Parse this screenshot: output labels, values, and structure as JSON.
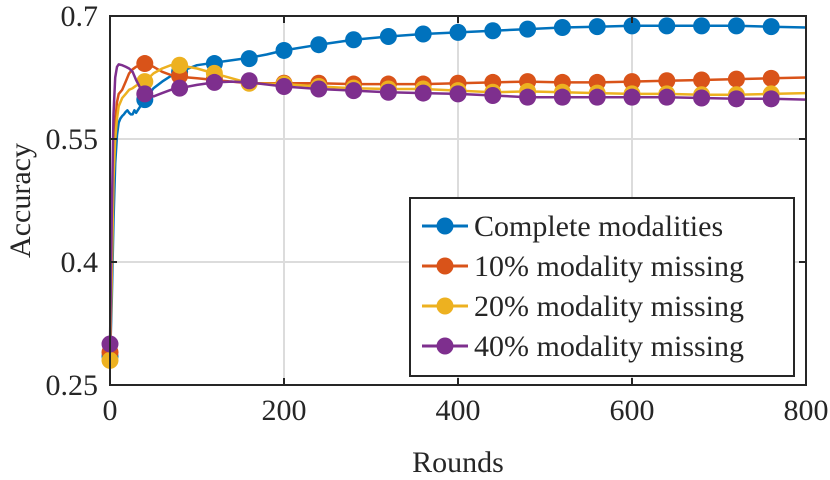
{
  "chart_data": {
    "type": "line",
    "title": "",
    "xlabel": "Rounds",
    "ylabel": "Accuracy",
    "xlim": [
      0,
      800
    ],
    "ylim": [
      0.25,
      0.7
    ],
    "xticks": [
      0,
      200,
      400,
      600,
      800
    ],
    "xtick_labels": [
      "0",
      "200",
      "400",
      "600",
      "800"
    ],
    "yticks": [
      0.25,
      0.4,
      0.55,
      0.7
    ],
    "ytick_labels": [
      "0.25",
      "0.4",
      "0.55",
      "0.7"
    ],
    "grid": true,
    "legend_position": "bottom-right",
    "series": [
      {
        "name": "Complete modalities",
        "color": "#0072BD",
        "line_x": [
          0,
          2,
          4,
          6,
          8,
          10,
          12,
          14,
          16,
          18,
          20,
          22,
          24,
          26,
          28,
          30,
          35,
          40,
          45,
          50,
          60,
          70,
          80,
          90,
          100,
          120,
          140,
          160,
          180,
          200,
          240,
          280,
          320,
          360,
          400,
          440,
          480,
          520,
          560,
          600,
          640,
          680,
          720,
          760,
          800
        ],
        "line_y": [
          0.28,
          0.35,
          0.45,
          0.52,
          0.555,
          0.57,
          0.575,
          0.578,
          0.58,
          0.583,
          0.585,
          0.582,
          0.58,
          0.58,
          0.585,
          0.582,
          0.59,
          0.598,
          0.605,
          0.612,
          0.62,
          0.627,
          0.632,
          0.636,
          0.64,
          0.643,
          0.646,
          0.649,
          0.653,
          0.658,
          0.665,
          0.671,
          0.675,
          0.678,
          0.68,
          0.682,
          0.684,
          0.686,
          0.687,
          0.688,
          0.688,
          0.688,
          0.688,
          0.687,
          0.686
        ],
        "marker_x": [
          0,
          40,
          80,
          120,
          160,
          200,
          240,
          280,
          320,
          360,
          400,
          440,
          480,
          520,
          560,
          600,
          640,
          680,
          720,
          760
        ],
        "marker_y": [
          0.285,
          0.598,
          0.632,
          0.642,
          0.648,
          0.658,
          0.665,
          0.671,
          0.675,
          0.678,
          0.68,
          0.682,
          0.684,
          0.686,
          0.687,
          0.688,
          0.688,
          0.688,
          0.688,
          0.687
        ]
      },
      {
        "name": "10% modality missing",
        "color": "#D95319",
        "line_x": [
          0,
          2,
          4,
          6,
          8,
          10,
          14,
          18,
          22,
          26,
          30,
          35,
          40,
          50,
          60,
          70,
          80,
          100,
          120,
          140,
          160,
          200,
          240,
          280,
          320,
          360,
          400,
          440,
          480,
          520,
          560,
          600,
          640,
          680,
          720,
          760,
          800
        ],
        "line_y": [
          0.28,
          0.4,
          0.52,
          0.57,
          0.595,
          0.605,
          0.61,
          0.62,
          0.63,
          0.635,
          0.638,
          0.64,
          0.642,
          0.638,
          0.632,
          0.628,
          0.626,
          0.624,
          0.622,
          0.62,
          0.618,
          0.618,
          0.618,
          0.617,
          0.617,
          0.617,
          0.618,
          0.619,
          0.62,
          0.619,
          0.619,
          0.62,
          0.621,
          0.622,
          0.623,
          0.624,
          0.625
        ],
        "marker_x": [
          0,
          40,
          80,
          120,
          160,
          200,
          240,
          280,
          320,
          360,
          400,
          440,
          480,
          520,
          560,
          600,
          640,
          680,
          720,
          760
        ],
        "marker_y": [
          0.29,
          0.642,
          0.627,
          0.623,
          0.619,
          0.618,
          0.618,
          0.617,
          0.617,
          0.617,
          0.618,
          0.619,
          0.62,
          0.619,
          0.619,
          0.62,
          0.621,
          0.622,
          0.623,
          0.624
        ]
      },
      {
        "name": "20% modality missing",
        "color": "#EDB120",
        "line_x": [
          0,
          2,
          4,
          6,
          8,
          10,
          14,
          18,
          22,
          26,
          30,
          35,
          40,
          50,
          60,
          70,
          80,
          100,
          120,
          140,
          160,
          200,
          240,
          280,
          320,
          360,
          400,
          440,
          480,
          520,
          560,
          600,
          640,
          680,
          720,
          760,
          800
        ],
        "line_y": [
          0.28,
          0.38,
          0.5,
          0.55,
          0.575,
          0.59,
          0.6,
          0.605,
          0.61,
          0.612,
          0.615,
          0.618,
          0.62,
          0.63,
          0.636,
          0.64,
          0.64,
          0.636,
          0.63,
          0.624,
          0.618,
          0.617,
          0.614,
          0.612,
          0.611,
          0.611,
          0.609,
          0.607,
          0.608,
          0.607,
          0.606,
          0.605,
          0.605,
          0.604,
          0.604,
          0.605,
          0.606
        ],
        "marker_x": [
          0,
          40,
          80,
          120,
          160,
          200,
          240,
          280,
          320,
          360,
          400,
          440,
          480,
          520,
          560,
          600,
          640,
          680,
          720,
          760
        ],
        "marker_y": [
          0.28,
          0.62,
          0.64,
          0.63,
          0.618,
          0.617,
          0.614,
          0.612,
          0.611,
          0.611,
          0.609,
          0.607,
          0.608,
          0.607,
          0.606,
          0.605,
          0.605,
          0.604,
          0.604,
          0.605
        ]
      },
      {
        "name": "40% modality missing",
        "color": "#7E2F8E",
        "line_x": [
          0,
          2,
          4,
          6,
          8,
          10,
          14,
          18,
          22,
          26,
          30,
          35,
          40,
          50,
          60,
          70,
          80,
          100,
          120,
          140,
          160,
          200,
          240,
          280,
          320,
          360,
          400,
          440,
          480,
          520,
          560,
          600,
          640,
          680,
          720,
          760,
          800
        ],
        "line_y": [
          0.3,
          0.45,
          0.58,
          0.625,
          0.638,
          0.641,
          0.64,
          0.638,
          0.636,
          0.632,
          0.622,
          0.612,
          0.604,
          0.602,
          0.606,
          0.61,
          0.612,
          0.616,
          0.619,
          0.62,
          0.619,
          0.614,
          0.611,
          0.609,
          0.607,
          0.606,
          0.605,
          0.603,
          0.601,
          0.601,
          0.601,
          0.601,
          0.601,
          0.6,
          0.599,
          0.599,
          0.598
        ],
        "marker_x": [
          0,
          40,
          80,
          120,
          160,
          200,
          240,
          280,
          320,
          360,
          400,
          440,
          480,
          520,
          560,
          600,
          640,
          680,
          720,
          760
        ],
        "marker_y": [
          0.3,
          0.605,
          0.612,
          0.619,
          0.621,
          0.614,
          0.611,
          0.609,
          0.607,
          0.606,
          0.605,
          0.603,
          0.601,
          0.601,
          0.601,
          0.601,
          0.601,
          0.6,
          0.599,
          0.599
        ]
      }
    ]
  }
}
